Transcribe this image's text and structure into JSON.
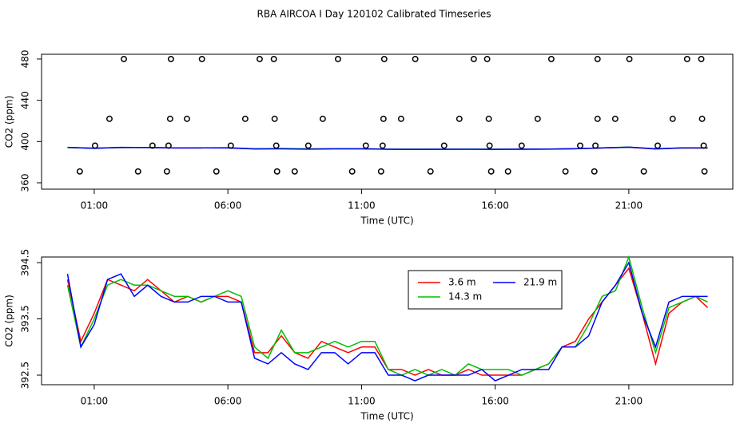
{
  "chart_data": [
    {
      "type": "line",
      "title": "RBA AIRCOA I  Day 120102  Calibrated Timeseries",
      "xlabel": "Time (UTC)",
      "ylabel": "CO2 (ppm)",
      "xlim": [
        -0.97,
        24.89
      ],
      "ylim": [
        353.8,
        484.6
      ],
      "xticks": [
        {
          "value": 1,
          "label": "01:00"
        },
        {
          "value": 6,
          "label": "06:00"
        },
        {
          "value": 11,
          "label": "11:00"
        },
        {
          "value": 16,
          "label": "16:00"
        },
        {
          "value": 21,
          "label": "21:00"
        }
      ],
      "yticks": [
        360,
        400,
        440,
        480
      ],
      "x": [
        0,
        1,
        2,
        3,
        4,
        5,
        6,
        7,
        8,
        9,
        10,
        11,
        12,
        13,
        14,
        15,
        16,
        17,
        18,
        19,
        20,
        21,
        22,
        23,
        23.95
      ],
      "series": [
        {
          "color": "#ff0000",
          "values": [
            394.2,
            393.6,
            394.1,
            394.2,
            393.8,
            393.8,
            393.9,
            392.9,
            393.2,
            392.8,
            393.0,
            393.0,
            392.6,
            392.5,
            392.5,
            392.6,
            392.5,
            392.5,
            392.7,
            393.1,
            393.8,
            394.4,
            392.7,
            393.8,
            393.7
          ]
        },
        {
          "color": "#00c000",
          "values": [
            394.1,
            393.5,
            394.2,
            394.1,
            393.9,
            393.8,
            394.0,
            393.0,
            393.3,
            392.9,
            393.1,
            393.1,
            392.6,
            392.6,
            392.6,
            392.7,
            392.6,
            392.5,
            392.7,
            393.0,
            393.9,
            394.6,
            392.9,
            393.8,
            393.8
          ]
        },
        {
          "color": "#0000ff",
          "values": [
            394.3,
            393.4,
            394.3,
            394.1,
            393.8,
            393.9,
            393.8,
            392.8,
            392.9,
            392.6,
            392.9,
            392.9,
            392.5,
            392.4,
            392.5,
            392.5,
            392.4,
            392.6,
            392.6,
            393.0,
            393.8,
            394.5,
            393.0,
            393.9,
            393.9
          ]
        }
      ],
      "points": {
        "color": "#000000",
        "x": [
          2.11,
          3.87,
          5.03,
          7.19,
          7.72,
          10.12,
          11.85,
          13.01,
          15.2,
          15.7,
          18.1,
          19.83,
          21.02,
          23.18,
          23.71,
          1.57,
          3.84,
          4.47,
          6.65,
          7.75,
          9.55,
          11.82,
          12.48,
          14.66,
          15.76,
          17.59,
          19.83,
          20.49,
          22.64,
          23.74,
          1.03,
          3.18,
          3.78,
          6.11,
          7.81,
          9.01,
          11.16,
          11.79,
          14.09,
          15.79,
          16.99,
          19.18,
          19.75,
          22.08,
          23.8,
          0.46,
          2.64,
          3.72,
          5.57,
          7.84,
          8.5,
          10.65,
          11.73,
          13.58,
          15.85,
          16.48,
          18.63,
          19.71,
          21.56,
          23.83
        ],
        "y": [
          480,
          480,
          480,
          480,
          480,
          480,
          480,
          480,
          480,
          480,
          480,
          480,
          480,
          480,
          480,
          422,
          422,
          422,
          422,
          422,
          422,
          422,
          422,
          422,
          422,
          422,
          422,
          422,
          422,
          422,
          396,
          396,
          396,
          396,
          396,
          396,
          396,
          396,
          396,
          396,
          396,
          396,
          396,
          396,
          396,
          371,
          371,
          371,
          371,
          371,
          371,
          371,
          371,
          371,
          371,
          371,
          371,
          371,
          371,
          371
        ]
      }
    },
    {
      "type": "line",
      "xlabel": "Time (UTC)",
      "ylabel": "CO2 (ppm)",
      "legend": "top",
      "xlim": [
        -0.97,
        24.89
      ],
      "ylim": [
        392.33,
        394.6
      ],
      "xticks": [
        {
          "value": 1,
          "label": "01:00"
        },
        {
          "value": 6,
          "label": "06:00"
        },
        {
          "value": 11,
          "label": "11:00"
        },
        {
          "value": 16,
          "label": "16:00"
        },
        {
          "value": 21,
          "label": "21:00"
        }
      ],
      "yticks": [
        392.5,
        393.5,
        394.5
      ],
      "x": [
        0,
        0.5,
        1,
        1.5,
        2,
        2.5,
        3,
        3.5,
        4,
        4.5,
        5,
        5.5,
        6,
        6.5,
        7,
        7.5,
        8,
        8.5,
        9,
        9.5,
        10,
        10.5,
        11,
        11.5,
        12,
        12.5,
        13,
        13.5,
        14,
        14.5,
        15,
        15.5,
        16,
        16.5,
        17,
        17.5,
        18,
        18.5,
        19,
        19.5,
        20,
        20.5,
        21,
        21.5,
        22,
        22.5,
        23,
        23.5,
        23.95
      ],
      "series": [
        {
          "name": "3.6 m",
          "color": "#ff0000",
          "values": [
            394.2,
            393.1,
            393.6,
            394.2,
            394.1,
            394.0,
            394.2,
            394.0,
            393.8,
            393.9,
            393.8,
            393.9,
            393.9,
            393.8,
            392.9,
            392.9,
            393.2,
            392.9,
            392.8,
            393.1,
            393.0,
            392.9,
            393.0,
            393.0,
            392.6,
            392.6,
            392.5,
            392.6,
            392.5,
            392.5,
            392.6,
            392.5,
            392.5,
            392.5,
            392.5,
            392.6,
            392.7,
            393.0,
            393.1,
            393.5,
            393.8,
            394.1,
            394.4,
            393.6,
            392.7,
            393.6,
            393.8,
            393.9,
            393.7
          ]
        },
        {
          "name": "14.3 m",
          "color": "#00c000",
          "values": [
            394.1,
            393.0,
            393.5,
            394.1,
            394.2,
            394.1,
            394.1,
            394.0,
            393.9,
            393.9,
            393.8,
            393.9,
            394.0,
            393.9,
            393.0,
            392.8,
            393.3,
            392.9,
            392.9,
            393.0,
            393.1,
            393.0,
            393.1,
            393.1,
            392.6,
            392.5,
            392.6,
            392.5,
            392.6,
            392.5,
            392.7,
            392.6,
            392.6,
            392.6,
            392.5,
            392.6,
            392.7,
            393.0,
            393.0,
            393.4,
            393.9,
            394.0,
            394.6,
            393.7,
            392.9,
            393.7,
            393.8,
            393.9,
            393.8
          ]
        },
        {
          "name": "21.9 m",
          "color": "#0000ff",
          "values": [
            394.3,
            393.0,
            393.4,
            394.2,
            394.3,
            393.9,
            394.1,
            393.9,
            393.8,
            393.8,
            393.9,
            393.9,
            393.8,
            393.8,
            392.8,
            392.7,
            392.9,
            392.7,
            392.6,
            392.9,
            392.9,
            392.7,
            392.9,
            392.9,
            392.5,
            392.5,
            392.4,
            392.5,
            392.5,
            392.5,
            392.5,
            392.6,
            392.4,
            392.5,
            392.6,
            392.6,
            392.6,
            393.0,
            393.0,
            393.2,
            393.8,
            394.1,
            394.5,
            393.6,
            393.0,
            393.8,
            393.9,
            393.9,
            393.9
          ]
        }
      ]
    }
  ]
}
